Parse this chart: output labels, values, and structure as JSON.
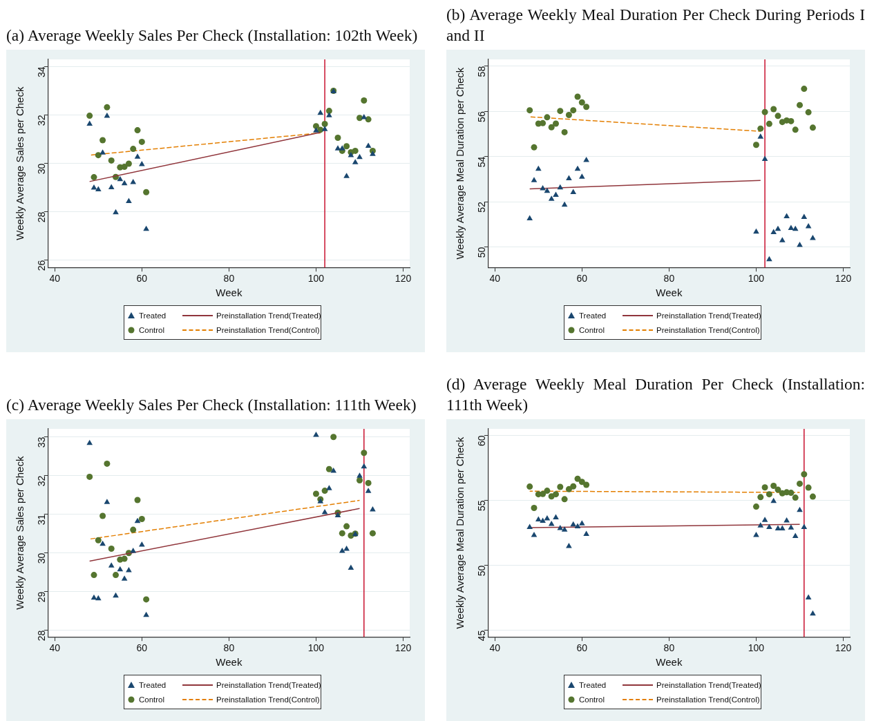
{
  "chart_data": [
    {
      "type": "scatter",
      "title": "(a) Average Weekly Sales Per Check (Installation: 102th Week)",
      "xlabel": "Week",
      "ylabel": "Weekly Average Sales per Check",
      "x": [
        48,
        49,
        50,
        51,
        52,
        53,
        54,
        55,
        56,
        57,
        58,
        59,
        60,
        61,
        100,
        101,
        102,
        103,
        104,
        105,
        106,
        107,
        108,
        109,
        110,
        111,
        112,
        113
      ],
      "xlim": [
        38.5,
        121.5
      ],
      "xticks": [
        40,
        60,
        80,
        100,
        120
      ],
      "ylim": [
        25.7,
        34.3
      ],
      "yticks": [
        26,
        28,
        30,
        32,
        34
      ],
      "grid": "y",
      "legend": "bottom",
      "series": [
        {
          "name": "Treated",
          "color": "#1a476f",
          "marker": "triangle",
          "values": [
            31.63,
            28.99,
            28.92,
            30.44,
            31.96,
            29.0,
            27.97,
            29.34,
            29.17,
            28.43,
            29.22,
            30.27,
            29.96,
            27.28,
            31.35,
            32.08,
            31.41,
            31.98,
            32.97,
            30.61,
            30.61,
            29.47,
            30.33,
            30.04,
            30.25,
            31.9,
            30.72,
            30.38
          ]
        },
        {
          "name": "Preinstallation Trend(Treated)",
          "type": "line",
          "color": "#90353b",
          "marker": "none",
          "line_style": "solid",
          "x": [
            48,
            101
          ],
          "values": [
            29.25,
            31.28
          ]
        },
        {
          "name": "Control",
          "color": "#55752f",
          "marker": "circle",
          "values": [
            31.97,
            29.43,
            30.34,
            30.96,
            32.32,
            30.12,
            29.44,
            29.84,
            29.86,
            29.99,
            30.6,
            31.37,
            30.89,
            28.81,
            31.54,
            31.39,
            31.63,
            32.17,
            33.0,
            31.06,
            30.52,
            30.71,
            30.46,
            30.52,
            31.88,
            32.6,
            31.82,
            30.52
          ]
        },
        {
          "name": "Preinstallation Trend(Control)",
          "type": "line",
          "color": "#e37e00",
          "marker": "none",
          "line_style": "dashed",
          "x": [
            48,
            101
          ],
          "values": [
            30.34,
            31.26
          ]
        }
      ],
      "ref_lines": [
        {
          "axis": "x",
          "value": 102,
          "color": "#c8102e"
        }
      ]
    },
    {
      "type": "scatter",
      "title": "(b) Average Weekly Meal Duration Per Check During Periods I and II",
      "xlabel": "Week",
      "ylabel": "Weekly Average Meal Duration per Check",
      "x": [
        48,
        49,
        50,
        51,
        52,
        53,
        54,
        55,
        56,
        57,
        58,
        59,
        60,
        61,
        100,
        101,
        102,
        103,
        104,
        105,
        106,
        107,
        108,
        109,
        110,
        111,
        112,
        113
      ],
      "xlim": [
        38.5,
        121.5
      ],
      "xticks": [
        40,
        60,
        80,
        100,
        120
      ],
      "ylim": [
        49.1,
        58.3
      ],
      "yticks": [
        50,
        52,
        54,
        56,
        58
      ],
      "grid": "y",
      "legend": "bottom",
      "series": [
        {
          "name": "Treated",
          "color": "#1a476f",
          "marker": "triangle",
          "values": [
            51.26,
            52.95,
            53.45,
            52.59,
            52.47,
            52.12,
            52.3,
            52.63,
            51.86,
            53.03,
            52.42,
            53.45,
            53.1,
            53.84,
            50.67,
            54.87,
            53.89,
            49.45,
            50.65,
            50.79,
            50.29,
            51.35,
            50.83,
            50.79,
            50.08,
            51.32,
            50.91,
            50.39
          ]
        },
        {
          "name": "Preinstallation Trend(Treated)",
          "type": "line",
          "color": "#90353b",
          "marker": "none",
          "line_style": "solid",
          "x": [
            48,
            101
          ],
          "values": [
            52.57,
            52.95
          ]
        },
        {
          "name": "Control",
          "color": "#55752f",
          "marker": "circle",
          "values": [
            56.05,
            54.41,
            55.46,
            55.48,
            55.74,
            55.3,
            55.46,
            56.02,
            55.08,
            55.84,
            56.05,
            56.65,
            56.4,
            56.2,
            54.52,
            55.24,
            55.97,
            55.45,
            56.1,
            55.8,
            55.53,
            55.6,
            55.57,
            55.19,
            56.28,
            57.0,
            55.96,
            55.28
          ]
        },
        {
          "name": "Preinstallation Trend(Control)",
          "type": "line",
          "color": "#e37e00",
          "marker": "none",
          "line_style": "dashed",
          "x": [
            48,
            101
          ],
          "values": [
            55.76,
            55.12
          ]
        }
      ],
      "ref_lines": [
        {
          "axis": "x",
          "value": 102,
          "color": "#c8102e"
        }
      ]
    },
    {
      "type": "scatter",
      "title": "(c) Average Weekly Sales Per Check (Installation: 111th Week)",
      "xlabel": "Week",
      "ylabel": "Weekly Average Sales per Check",
      "x": [
        48,
        49,
        50,
        51,
        52,
        53,
        54,
        55,
        56,
        57,
        58,
        59,
        60,
        61,
        100,
        101,
        102,
        103,
        104,
        105,
        106,
        107,
        108,
        109,
        110,
        111,
        112,
        113
      ],
      "xlim": [
        38.5,
        121.5
      ],
      "xticks": [
        40,
        60,
        80,
        100,
        120
      ],
      "ylim": [
        27.83,
        33.21
      ],
      "yticks": [
        28,
        29,
        30,
        31,
        32,
        33
      ],
      "grid": "y",
      "legend": "bottom",
      "series": [
        {
          "name": "Treated",
          "color": "#1a476f",
          "marker": "triangle",
          "values": [
            32.84,
            28.84,
            28.82,
            30.23,
            31.31,
            29.67,
            28.89,
            29.57,
            29.33,
            29.55,
            30.05,
            30.82,
            30.21,
            28.39,
            33.05,
            31.33,
            31.05,
            31.67,
            32.12,
            30.97,
            30.05,
            30.1,
            29.61,
            30.48,
            31.99,
            32.23,
            31.6,
            31.12
          ]
        },
        {
          "name": "Preinstallation Trend(Treated)",
          "type": "line",
          "color": "#90353b",
          "marker": "none",
          "line_style": "solid",
          "x": [
            48,
            110
          ],
          "values": [
            29.79,
            31.15
          ]
        },
        {
          "name": "Control",
          "color": "#55752f",
          "marker": "circle",
          "values": [
            31.97,
            29.43,
            30.33,
            30.96,
            32.31,
            30.11,
            29.43,
            29.83,
            29.85,
            30.0,
            30.6,
            31.37,
            30.88,
            28.8,
            31.53,
            31.39,
            31.61,
            32.17,
            33.0,
            31.04,
            30.51,
            30.69,
            30.45,
            30.5,
            31.88,
            32.59,
            31.81,
            30.51
          ]
        },
        {
          "name": "Preinstallation Trend(Control)",
          "type": "line",
          "color": "#e37e00",
          "marker": "none",
          "line_style": "dashed",
          "x": [
            48,
            110
          ],
          "values": [
            30.36,
            31.36
          ]
        }
      ],
      "ref_lines": [
        {
          "axis": "x",
          "value": 111,
          "color": "#c8102e"
        }
      ]
    },
    {
      "type": "scatter",
      "title": "(d) Average Weekly Meal Duration Per Check (Installation: 111th Week)",
      "xlabel": "Week",
      "ylabel": "Weekly Average Meal Duration per Check",
      "x": [
        48,
        49,
        50,
        51,
        52,
        53,
        54,
        55,
        56,
        57,
        58,
        59,
        60,
        61,
        100,
        101,
        102,
        103,
        104,
        105,
        106,
        107,
        108,
        109,
        110,
        111,
        112,
        113
      ],
      "xlim": [
        38.5,
        121.5
      ],
      "xticks": [
        40,
        60,
        80,
        100,
        120
      ],
      "ylim": [
        44.5,
        60.5
      ],
      "yticks": [
        45,
        50,
        55,
        60
      ],
      "grid": "y",
      "legend": "bottom",
      "series": [
        {
          "name": "Treated",
          "color": "#1a476f",
          "marker": "triangle",
          "values": [
            52.93,
            52.32,
            53.51,
            53.41,
            53.6,
            53.17,
            53.68,
            52.85,
            52.73,
            51.47,
            53.13,
            52.99,
            53.21,
            52.4,
            52.32,
            53.05,
            53.47,
            52.93,
            54.93,
            52.83,
            52.83,
            53.43,
            52.89,
            52.24,
            54.24,
            52.93,
            47.51,
            46.28
          ]
        },
        {
          "name": "Preinstallation Trend(Treated)",
          "type": "line",
          "color": "#90353b",
          "marker": "none",
          "line_style": "solid",
          "x": [
            48,
            110
          ],
          "values": [
            52.9,
            53.15
          ]
        },
        {
          "name": "Control",
          "color": "#55752f",
          "marker": "circle",
          "values": [
            56.06,
            54.42,
            55.47,
            55.49,
            55.74,
            55.31,
            55.47,
            56.04,
            55.09,
            55.86,
            56.08,
            56.66,
            56.42,
            56.2,
            54.52,
            55.25,
            56.0,
            55.47,
            56.12,
            55.82,
            55.54,
            55.62,
            55.58,
            55.21,
            56.28,
            57.01,
            55.98,
            55.29
          ]
        },
        {
          "name": "Preinstallation Trend(Control)",
          "type": "line",
          "color": "#e37e00",
          "marker": "none",
          "line_style": "dashed",
          "x": [
            48,
            110
          ],
          "values": [
            55.71,
            55.61
          ]
        }
      ],
      "ref_lines": [
        {
          "axis": "x",
          "value": 111,
          "color": "#c8102e"
        }
      ]
    }
  ]
}
